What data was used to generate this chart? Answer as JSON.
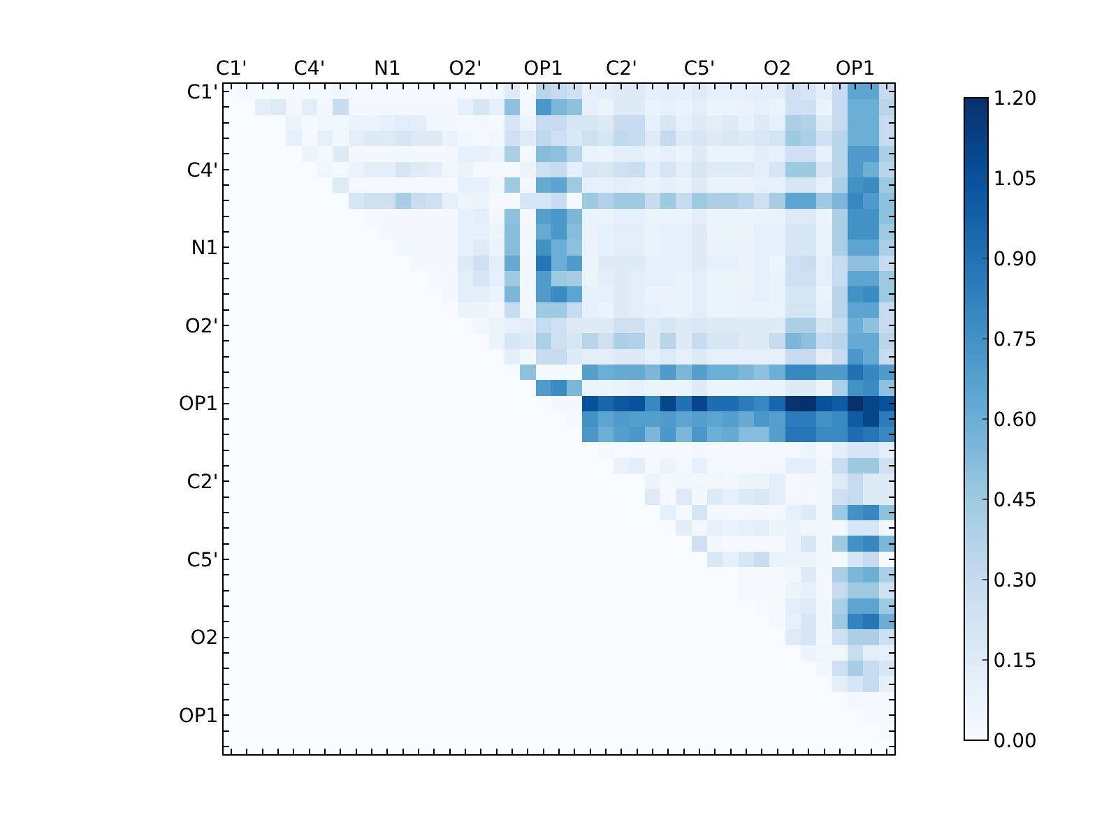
{
  "chart_data": {
    "type": "heatmap",
    "categories": [
      "C1'",
      null,
      null,
      null,
      null,
      "C4'",
      null,
      null,
      null,
      null,
      "N1",
      null,
      null,
      null,
      null,
      "O2'",
      null,
      null,
      null,
      null,
      "OP1",
      null,
      null,
      null,
      null,
      "C2'",
      null,
      null,
      null,
      null,
      "C5'",
      null,
      null,
      null,
      null,
      "O2",
      null,
      null,
      null,
      null,
      "OP1",
      null,
      null
    ],
    "y_categories": [
      "C1'",
      null,
      null,
      null,
      null,
      "C4'",
      null,
      null,
      null,
      null,
      "N1",
      null,
      null,
      null,
      null,
      "O2'",
      null,
      null,
      null,
      null,
      "OP1",
      null,
      null,
      null,
      null,
      "C2'",
      null,
      null,
      null,
      null,
      "C5'",
      null,
      null,
      null,
      null,
      "O2",
      null,
      null,
      null,
      null,
      "OP1",
      null,
      null
    ],
    "clim": [
      0,
      1.2
    ],
    "cticks": [
      {
        "value": 0,
        "label": "0.00"
      },
      {
        "value": 0.15,
        "label": "0.15"
      },
      {
        "value": 0.3,
        "label": "0.30"
      },
      {
        "value": 0.45,
        "label": "0.45"
      },
      {
        "value": 0.6,
        "label": "0.60"
      },
      {
        "value": 0.75,
        "label": "0.75"
      },
      {
        "value": 0.9,
        "label": "0.90"
      },
      {
        "value": 1.05,
        "label": "1.05"
      },
      {
        "value": 1.2,
        "label": "1.20"
      }
    ],
    "cells": [
      [
        0,
        0.03,
        0.02,
        0.02,
        0.02,
        0.02,
        0.02,
        0.04,
        0.02,
        0.02,
        0.02,
        0.02,
        0.02,
        0.02,
        0.02,
        0.02,
        0.03,
        0.05,
        0.15,
        0.02,
        0.35,
        0.3,
        0.25,
        0.1,
        0.12,
        0.15,
        0.15,
        0.1,
        0.12,
        0.1,
        0.15,
        0.1,
        0.1,
        0.1,
        0.12,
        0.12,
        0.25,
        0.2,
        0.12,
        0.3,
        0.65,
        0.65,
        0.3
      ],
      [
        0,
        0,
        0.12,
        0.15,
        0.03,
        0.12,
        0.03,
        0.28,
        0.03,
        0.03,
        0.03,
        0.03,
        0.03,
        0.03,
        0.03,
        0.1,
        0.2,
        0.1,
        0.5,
        0.03,
        0.72,
        0.55,
        0.5,
        0.1,
        0.07,
        0.15,
        0.15,
        0.08,
        0.1,
        0.08,
        0.12,
        0.07,
        0.07,
        0.08,
        0.1,
        0.08,
        0.25,
        0.25,
        0.08,
        0.3,
        0.6,
        0.6,
        0.35
      ],
      [
        0,
        0,
        0,
        0,
        0.07,
        0.02,
        0.05,
        0.05,
        0.08,
        0.07,
        0.1,
        0.13,
        0.12,
        0.05,
        0.03,
        0.02,
        0.03,
        0.02,
        0.2,
        0.07,
        0.3,
        0.3,
        0.2,
        0.2,
        0.15,
        0.3,
        0.3,
        0.1,
        0.2,
        0.1,
        0.15,
        0.12,
        0.15,
        0.1,
        0.15,
        0.1,
        0.4,
        0.38,
        0.15,
        0.3,
        0.6,
        0.6,
        0.3
      ],
      [
        0,
        0,
        0,
        0,
        0.1,
        0.02,
        0.1,
        0.04,
        0.12,
        0.15,
        0.15,
        0.2,
        0.15,
        0.15,
        0.08,
        0.04,
        0.02,
        0.04,
        0.25,
        0.15,
        0.32,
        0.25,
        0.18,
        0.25,
        0.2,
        0.32,
        0.3,
        0.15,
        0.3,
        0.15,
        0.2,
        0.15,
        0.18,
        0.15,
        0.18,
        0.22,
        0.45,
        0.4,
        0.25,
        0.35,
        0.6,
        0.6,
        0.3
      ],
      [
        0,
        0,
        0,
        0,
        0,
        0.06,
        0.02,
        0.15,
        0.03,
        0.03,
        0.03,
        0.03,
        0.03,
        0.03,
        0.03,
        0.1,
        0.1,
        0.06,
        0.4,
        0.03,
        0.52,
        0.5,
        0.35,
        0.08,
        0.07,
        0.12,
        0.12,
        0.08,
        0.1,
        0.07,
        0.15,
        0.07,
        0.07,
        0.07,
        0.12,
        0.1,
        0.25,
        0.25,
        0.1,
        0.35,
        0.7,
        0.7,
        0.4
      ],
      [
        0,
        0,
        0,
        0,
        0,
        0,
        0.05,
        0.02,
        0.07,
        0.12,
        0.12,
        0.2,
        0.15,
        0.12,
        0.05,
        0.07,
        0.02,
        0.02,
        0.02,
        0.07,
        0.25,
        0.3,
        0.1,
        0.2,
        0.18,
        0.25,
        0.28,
        0.12,
        0.2,
        0.12,
        0.2,
        0.15,
        0.15,
        0.15,
        0.12,
        0.2,
        0.45,
        0.45,
        0.2,
        0.35,
        0.7,
        0.6,
        0.35
      ],
      [
        0,
        0,
        0,
        0,
        0,
        0,
        0,
        0.15,
        0.02,
        0.02,
        0.02,
        0.02,
        0.02,
        0.02,
        0.02,
        0.1,
        0.1,
        0.04,
        0.45,
        0.03,
        0.62,
        0.65,
        0.45,
        0.1,
        0.1,
        0.12,
        0.1,
        0.08,
        0.1,
        0.08,
        0.15,
        0.08,
        0.08,
        0.08,
        0.1,
        0.1,
        0.2,
        0.2,
        0.1,
        0.4,
        0.75,
        0.78,
        0.45
      ],
      [
        0,
        0,
        0,
        0,
        0,
        0,
        0,
        0,
        0.2,
        0.25,
        0.25,
        0.42,
        0.28,
        0.25,
        0.1,
        0.06,
        0.07,
        0.02,
        0.02,
        0.2,
        0.2,
        0.28,
        0.02,
        0.45,
        0.38,
        0.45,
        0.45,
        0.3,
        0.45,
        0.3,
        0.45,
        0.4,
        0.4,
        0.35,
        0.25,
        0.42,
        0.65,
        0.65,
        0.45,
        0.55,
        0.8,
        0.7,
        0.5
      ],
      [
        0,
        0,
        0,
        0,
        0,
        0,
        0,
        0,
        0,
        0.02,
        0.03,
        0.03,
        0.03,
        0.03,
        0.03,
        0.1,
        0.12,
        0.04,
        0.5,
        0.03,
        0.68,
        0.72,
        0.55,
        0.08,
        0.07,
        0.1,
        0.1,
        0.07,
        0.07,
        0.07,
        0.12,
        0.07,
        0.07,
        0.07,
        0.08,
        0.08,
        0.15,
        0.15,
        0.07,
        0.4,
        0.75,
        0.75,
        0.5
      ],
      [
        0,
        0,
        0,
        0,
        0,
        0,
        0,
        0,
        0,
        0,
        0.03,
        0.03,
        0.03,
        0.03,
        0.03,
        0.1,
        0.1,
        0.06,
        0.52,
        0.04,
        0.62,
        0.72,
        0.52,
        0.08,
        0.1,
        0.12,
        0.12,
        0.08,
        0.1,
        0.1,
        0.15,
        0.07,
        0.07,
        0.07,
        0.1,
        0.1,
        0.2,
        0.2,
        0.08,
        0.4,
        0.75,
        0.75,
        0.45
      ],
      [
        0,
        0,
        0,
        0,
        0,
        0,
        0,
        0,
        0,
        0,
        0,
        0.04,
        0.03,
        0.03,
        0.03,
        0.1,
        0.15,
        0.08,
        0.52,
        0.03,
        0.75,
        0.6,
        0.5,
        0.08,
        0.1,
        0.12,
        0.12,
        0.08,
        0.1,
        0.1,
        0.15,
        0.08,
        0.08,
        0.08,
        0.1,
        0.1,
        0.2,
        0.2,
        0.08,
        0.4,
        0.65,
        0.65,
        0.4
      ],
      [
        0,
        0,
        0,
        0,
        0,
        0,
        0,
        0,
        0,
        0,
        0,
        0,
        0.03,
        0.03,
        0.03,
        0.15,
        0.25,
        0.12,
        0.62,
        0.04,
        0.88,
        0.6,
        0.7,
        0.07,
        0.15,
        0.15,
        0.15,
        0.1,
        0.1,
        0.1,
        0.15,
        0.1,
        0.1,
        0.08,
        0.1,
        0.06,
        0.25,
        0.28,
        0.1,
        0.3,
        0.5,
        0.5,
        0.3
      ],
      [
        0,
        0,
        0,
        0,
        0,
        0,
        0,
        0,
        0,
        0,
        0,
        0,
        0,
        0.02,
        0.03,
        0.12,
        0.2,
        0.1,
        0.45,
        0.04,
        0.7,
        0.45,
        0.42,
        0.07,
        0.12,
        0.15,
        0.12,
        0.1,
        0.1,
        0.08,
        0.12,
        0.07,
        0.07,
        0.07,
        0.1,
        0.08,
        0.25,
        0.25,
        0.1,
        0.3,
        0.65,
        0.65,
        0.45
      ],
      [
        0,
        0,
        0,
        0,
        0,
        0,
        0,
        0,
        0,
        0,
        0,
        0,
        0,
        0,
        0.03,
        0.12,
        0.12,
        0.08,
        0.55,
        0.04,
        0.7,
        0.78,
        0.65,
        0.1,
        0.1,
        0.15,
        0.12,
        0.08,
        0.08,
        0.08,
        0.12,
        0.07,
        0.07,
        0.08,
        0.1,
        0.08,
        0.2,
        0.2,
        0.08,
        0.35,
        0.75,
        0.78,
        0.45
      ],
      [
        0,
        0,
        0,
        0,
        0,
        0,
        0,
        0,
        0,
        0,
        0,
        0,
        0,
        0,
        0,
        0.07,
        0.06,
        0.04,
        0.3,
        0.04,
        0.45,
        0.45,
        0.3,
        0.1,
        0.08,
        0.15,
        0.12,
        0.1,
        0.08,
        0.08,
        0.12,
        0.07,
        0.07,
        0.08,
        0.08,
        0.07,
        0.22,
        0.22,
        0.1,
        0.35,
        0.65,
        0.65,
        0.3
      ],
      [
        0,
        0,
        0,
        0,
        0,
        0,
        0,
        0,
        0,
        0,
        0,
        0,
        0,
        0,
        0,
        0,
        0.05,
        0.07,
        0.1,
        0.12,
        0.3,
        0.25,
        0.15,
        0.15,
        0.15,
        0.25,
        0.25,
        0.15,
        0.2,
        0.15,
        0.18,
        0.15,
        0.15,
        0.15,
        0.15,
        0.15,
        0.4,
        0.4,
        0.2,
        0.3,
        0.6,
        0.5,
        0.3
      ],
      [
        0,
        0,
        0,
        0,
        0,
        0,
        0,
        0,
        0,
        0,
        0,
        0,
        0,
        0,
        0,
        0,
        0,
        0.07,
        0.2,
        0.15,
        0.4,
        0.25,
        0.2,
        0.35,
        0.25,
        0.4,
        0.38,
        0.15,
        0.35,
        0.15,
        0.3,
        0.2,
        0.2,
        0.15,
        0.15,
        0.3,
        0.55,
        0.5,
        0.3,
        0.35,
        0.62,
        0.62,
        0.35
      ],
      [
        0,
        0,
        0,
        0,
        0,
        0,
        0,
        0,
        0,
        0,
        0,
        0,
        0,
        0,
        0,
        0,
        0,
        0,
        0.12,
        0.04,
        0.3,
        0.3,
        0.15,
        0.12,
        0.12,
        0.15,
        0.15,
        0.1,
        0.15,
        0.1,
        0.15,
        0.1,
        0.1,
        0.1,
        0.1,
        0.1,
        0.3,
        0.3,
        0.12,
        0.3,
        0.72,
        0.62,
        0.3
      ],
      [
        0,
        0,
        0,
        0,
        0,
        0,
        0,
        0,
        0,
        0,
        0,
        0,
        0,
        0,
        0,
        0,
        0,
        0,
        0,
        0.5,
        0.02,
        0.02,
        0.02,
        0.68,
        0.6,
        0.62,
        0.62,
        0.55,
        0.7,
        0.55,
        0.68,
        0.6,
        0.6,
        0.55,
        0.5,
        0.6,
        0.8,
        0.8,
        0.7,
        0.7,
        0.9,
        0.8,
        0.7
      ],
      [
        0,
        0,
        0,
        0,
        0,
        0,
        0,
        0,
        0,
        0,
        0,
        0,
        0,
        0,
        0,
        0,
        0,
        0,
        0,
        0,
        0.7,
        0.78,
        0.55,
        0.07,
        0.07,
        0.08,
        0.1,
        0.07,
        0.07,
        0.07,
        0.15,
        0.07,
        0.07,
        0.07,
        0.08,
        0.08,
        0.15,
        0.15,
        0.07,
        0.4,
        0.75,
        0.78,
        0.5
      ],
      [
        0,
        0,
        0,
        0,
        0,
        0,
        0,
        0,
        0,
        0,
        0,
        0,
        0,
        0,
        0,
        0,
        0,
        0,
        0,
        0,
        0,
        0.03,
        0.03,
        1.05,
        0.95,
        1.02,
        1.05,
        0.8,
        1.1,
        0.9,
        1.1,
        0.92,
        0.92,
        0.85,
        0.8,
        0.95,
        1.18,
        1.2,
        1.05,
        1.0,
        1.2,
        1.1,
        1.05
      ],
      [
        0,
        0,
        0,
        0,
        0,
        0,
        0,
        0,
        0,
        0,
        0,
        0,
        0,
        0,
        0,
        0,
        0,
        0,
        0,
        0,
        0,
        0,
        0.02,
        0.75,
        0.65,
        0.7,
        0.68,
        0.68,
        0.7,
        0.65,
        0.68,
        0.65,
        0.68,
        0.62,
        0.72,
        0.68,
        0.85,
        0.85,
        0.75,
        0.78,
        1.0,
        1.1,
        0.85
      ],
      [
        0,
        0,
        0,
        0,
        0,
        0,
        0,
        0,
        0,
        0,
        0,
        0,
        0,
        0,
        0,
        0,
        0,
        0,
        0,
        0,
        0,
        0,
        0,
        0.72,
        0.6,
        0.68,
        0.72,
        0.55,
        0.72,
        0.55,
        0.72,
        0.6,
        0.62,
        0.52,
        0.52,
        0.68,
        0.88,
        0.88,
        0.78,
        0.78,
        0.92,
        0.88,
        0.8
      ],
      [
        0,
        0,
        0,
        0,
        0,
        0,
        0,
        0,
        0,
        0,
        0,
        0,
        0,
        0,
        0,
        0,
        0,
        0,
        0,
        0,
        0,
        0,
        0,
        0,
        0.02,
        0.01,
        0.02,
        0.02,
        0.02,
        0.02,
        0.03,
        0.02,
        0.02,
        0.02,
        0.02,
        0.02,
        0.03,
        0.06,
        0.02,
        0.12,
        0.2,
        0.2,
        0.12
      ],
      [
        0,
        0,
        0,
        0,
        0,
        0,
        0,
        0,
        0,
        0,
        0,
        0,
        0,
        0,
        0,
        0,
        0,
        0,
        0,
        0,
        0,
        0,
        0,
        0,
        0,
        0.08,
        0.12,
        0.02,
        0.07,
        0.03,
        0.1,
        0.03,
        0.02,
        0.02,
        0.03,
        0.03,
        0.12,
        0.12,
        0.05,
        0.28,
        0.45,
        0.45,
        0.25
      ],
      [
        0,
        0,
        0,
        0,
        0,
        0,
        0,
        0,
        0,
        0,
        0,
        0,
        0,
        0,
        0,
        0,
        0,
        0,
        0,
        0,
        0,
        0,
        0,
        0,
        0,
        0,
        0,
        0.06,
        0.03,
        0.05,
        0.05,
        0.05,
        0.04,
        0.07,
        0.07,
        0.12,
        0.02,
        0.04,
        0.04,
        0.15,
        0.3,
        0.15,
        0.15
      ],
      [
        0,
        0,
        0,
        0,
        0,
        0,
        0,
        0,
        0,
        0,
        0,
        0,
        0,
        0,
        0,
        0,
        0,
        0,
        0,
        0,
        0,
        0,
        0,
        0,
        0,
        0,
        0,
        0.15,
        0.02,
        0.15,
        0.03,
        0.15,
        0.1,
        0.15,
        0.18,
        0.12,
        0.03,
        0.03,
        0.05,
        0.25,
        0.3,
        0.15,
        0.15
      ],
      [
        0,
        0,
        0,
        0,
        0,
        0,
        0,
        0,
        0,
        0,
        0,
        0,
        0,
        0,
        0,
        0,
        0,
        0,
        0,
        0,
        0,
        0,
        0,
        0,
        0,
        0,
        0,
        0,
        0.1,
        0.02,
        0.2,
        0.03,
        0.03,
        0.03,
        0.03,
        0.03,
        0.1,
        0.15,
        0.04,
        0.45,
        0.75,
        0.8,
        0.5
      ],
      [
        0,
        0,
        0,
        0,
        0,
        0,
        0,
        0,
        0,
        0,
        0,
        0,
        0,
        0,
        0,
        0,
        0,
        0,
        0,
        0,
        0,
        0,
        0,
        0,
        0,
        0,
        0,
        0,
        0,
        0.12,
        0.03,
        0.1,
        0.08,
        0.1,
        0.12,
        0.06,
        0.08,
        0.04,
        0.04,
        0.03,
        0.2,
        0.2,
        0.05
      ],
      [
        0,
        0,
        0,
        0,
        0,
        0,
        0,
        0,
        0,
        0,
        0,
        0,
        0,
        0,
        0,
        0,
        0,
        0,
        0,
        0,
        0,
        0,
        0,
        0,
        0,
        0,
        0,
        0,
        0,
        0,
        0.25,
        0.03,
        0.02,
        0.02,
        0.02,
        0.02,
        0.08,
        0.2,
        0.04,
        0.45,
        0.75,
        0.8,
        0.55
      ],
      [
        0,
        0,
        0,
        0,
        0,
        0,
        0,
        0,
        0,
        0,
        0,
        0,
        0,
        0,
        0,
        0,
        0,
        0,
        0,
        0,
        0,
        0,
        0,
        0,
        0,
        0,
        0,
        0,
        0,
        0,
        0,
        0.18,
        0.1,
        0.2,
        0.28,
        0.08,
        0.07,
        0.07,
        0.04,
        0.02,
        0.2,
        0.3,
        0.01
      ],
      [
        0,
        0,
        0,
        0,
        0,
        0,
        0,
        0,
        0,
        0,
        0,
        0,
        0,
        0,
        0,
        0,
        0,
        0,
        0,
        0,
        0,
        0,
        0,
        0,
        0,
        0,
        0,
        0,
        0,
        0,
        0,
        0,
        0,
        0.02,
        0.02,
        0.02,
        0.04,
        0.15,
        0.03,
        0.4,
        0.55,
        0.6,
        0.4
      ],
      [
        0,
        0,
        0,
        0,
        0,
        0,
        0,
        0,
        0,
        0,
        0,
        0,
        0,
        0,
        0,
        0,
        0,
        0,
        0,
        0,
        0,
        0,
        0,
        0,
        0,
        0,
        0,
        0,
        0,
        0,
        0,
        0,
        0,
        0.02,
        0.02,
        0.02,
        0.06,
        0.1,
        0.03,
        0.3,
        0.45,
        0.45,
        0.25
      ],
      [
        0,
        0,
        0,
        0,
        0,
        0,
        0,
        0,
        0,
        0,
        0,
        0,
        0,
        0,
        0,
        0,
        0,
        0,
        0,
        0,
        0,
        0,
        0,
        0,
        0,
        0,
        0,
        0,
        0,
        0,
        0,
        0,
        0,
        0,
        0.01,
        0.02,
        0.12,
        0.15,
        0.04,
        0.4,
        0.65,
        0.65,
        0.45
      ],
      [
        0,
        0,
        0,
        0,
        0,
        0,
        0,
        0,
        0,
        0,
        0,
        0,
        0,
        0,
        0,
        0,
        0,
        0,
        0,
        0,
        0,
        0,
        0,
        0,
        0,
        0,
        0,
        0,
        0,
        0,
        0,
        0,
        0,
        0,
        0,
        0.02,
        0.1,
        0.2,
        0.04,
        0.45,
        0.82,
        0.88,
        0.6
      ],
      [
        0,
        0,
        0,
        0,
        0,
        0,
        0,
        0,
        0,
        0,
        0,
        0,
        0,
        0,
        0,
        0,
        0,
        0,
        0,
        0,
        0,
        0,
        0,
        0,
        0,
        0,
        0,
        0,
        0,
        0,
        0,
        0,
        0,
        0,
        0,
        0,
        0.15,
        0.2,
        0.04,
        0.25,
        0.4,
        0.4,
        0.25
      ],
      [
        0,
        0,
        0,
        0,
        0,
        0,
        0,
        0,
        0,
        0,
        0,
        0,
        0,
        0,
        0,
        0,
        0,
        0,
        0,
        0,
        0,
        0,
        0,
        0,
        0,
        0,
        0,
        0,
        0,
        0,
        0,
        0,
        0,
        0,
        0,
        0,
        0,
        0.07,
        0.05,
        0.05,
        0.28,
        0.12,
        0.1
      ],
      [
        0,
        0,
        0,
        0,
        0,
        0,
        0,
        0,
        0,
        0,
        0,
        0,
        0,
        0,
        0,
        0,
        0,
        0,
        0,
        0,
        0,
        0,
        0,
        0,
        0,
        0,
        0,
        0,
        0,
        0,
        0,
        0,
        0,
        0,
        0,
        0,
        0,
        0,
        0.04,
        0.25,
        0.42,
        0.3,
        0.2
      ],
      [
        0,
        0,
        0,
        0,
        0,
        0,
        0,
        0,
        0,
        0,
        0,
        0,
        0,
        0,
        0,
        0,
        0,
        0,
        0,
        0,
        0,
        0,
        0,
        0,
        0,
        0,
        0,
        0,
        0,
        0,
        0,
        0,
        0,
        0,
        0,
        0,
        0,
        0,
        0,
        0.12,
        0.2,
        0.3,
        0.1
      ],
      [
        0,
        0,
        0,
        0,
        0,
        0,
        0,
        0,
        0,
        0,
        0,
        0,
        0,
        0,
        0,
        0,
        0,
        0,
        0,
        0,
        0,
        0,
        0,
        0,
        0,
        0,
        0,
        0,
        0,
        0,
        0,
        0,
        0,
        0,
        0,
        0,
        0,
        0,
        0,
        0,
        0.03,
        0.02,
        0.02
      ],
      [
        0,
        0,
        0,
        0,
        0,
        0,
        0,
        0,
        0,
        0,
        0,
        0,
        0,
        0,
        0,
        0,
        0,
        0,
        0,
        0,
        0,
        0,
        0,
        0,
        0,
        0,
        0,
        0,
        0,
        0,
        0,
        0,
        0,
        0,
        0,
        0,
        0,
        0,
        0,
        0,
        0,
        0.02,
        0.02
      ],
      [
        0,
        0,
        0,
        0,
        0,
        0,
        0,
        0,
        0,
        0,
        0,
        0,
        0,
        0,
        0,
        0,
        0,
        0,
        0,
        0,
        0,
        0,
        0,
        0,
        0,
        0,
        0,
        0,
        0,
        0,
        0,
        0,
        0,
        0,
        0,
        0,
        0,
        0,
        0,
        0,
        0,
        0,
        0.02
      ],
      [
        0,
        0,
        0,
        0,
        0,
        0,
        0,
        0,
        0,
        0,
        0,
        0,
        0,
        0,
        0,
        0,
        0,
        0,
        0,
        0,
        0,
        0,
        0,
        0,
        0,
        0,
        0,
        0,
        0,
        0,
        0,
        0,
        0,
        0,
        0,
        0,
        0,
        0,
        0,
        0,
        0,
        0,
        0
      ]
    ]
  }
}
